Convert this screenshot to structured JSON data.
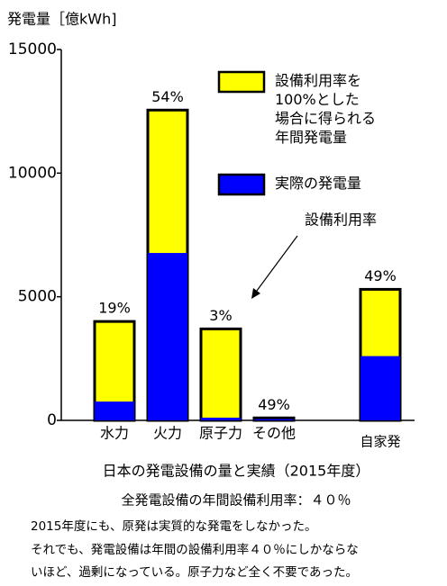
{
  "chart_data": {
    "type": "overlap-bar",
    "title": "日本の発電設備の量と実績（2015年度）",
    "subtitle": "全発電設備の年間設備利用率：４０％",
    "y_label": "発電量［億kWh]",
    "annotation": "設備利用率",
    "categories": [
      "水力",
      "火力",
      "原子力",
      "その他",
      "自家発"
    ],
    "series": [
      {
        "name": "設備利用率を\n100%とした\n場合に得られる\n年間発電量",
        "color": "#ffff00",
        "values": [
          4000,
          12550,
          3700,
          100,
          5300
        ]
      },
      {
        "name": "実際の発電量",
        "color": "#0000ff",
        "values": [
          760,
          6770,
          110,
          50,
          2600
        ]
      }
    ],
    "rate_labels": [
      "19%",
      "54%",
      "3%",
      "49%",
      "49%"
    ],
    "ylim": [
      0,
      15000
    ],
    "yticks": [
      0,
      5000,
      10000,
      15000
    ],
    "notes": [
      "2015年度にも、原発は実質的な発電をしなかった。",
      "それでも、発電設備は年間の設備利用率４０％にしかならな",
      "いほど、過剰になっている。原子力など全く不要であった。"
    ]
  }
}
